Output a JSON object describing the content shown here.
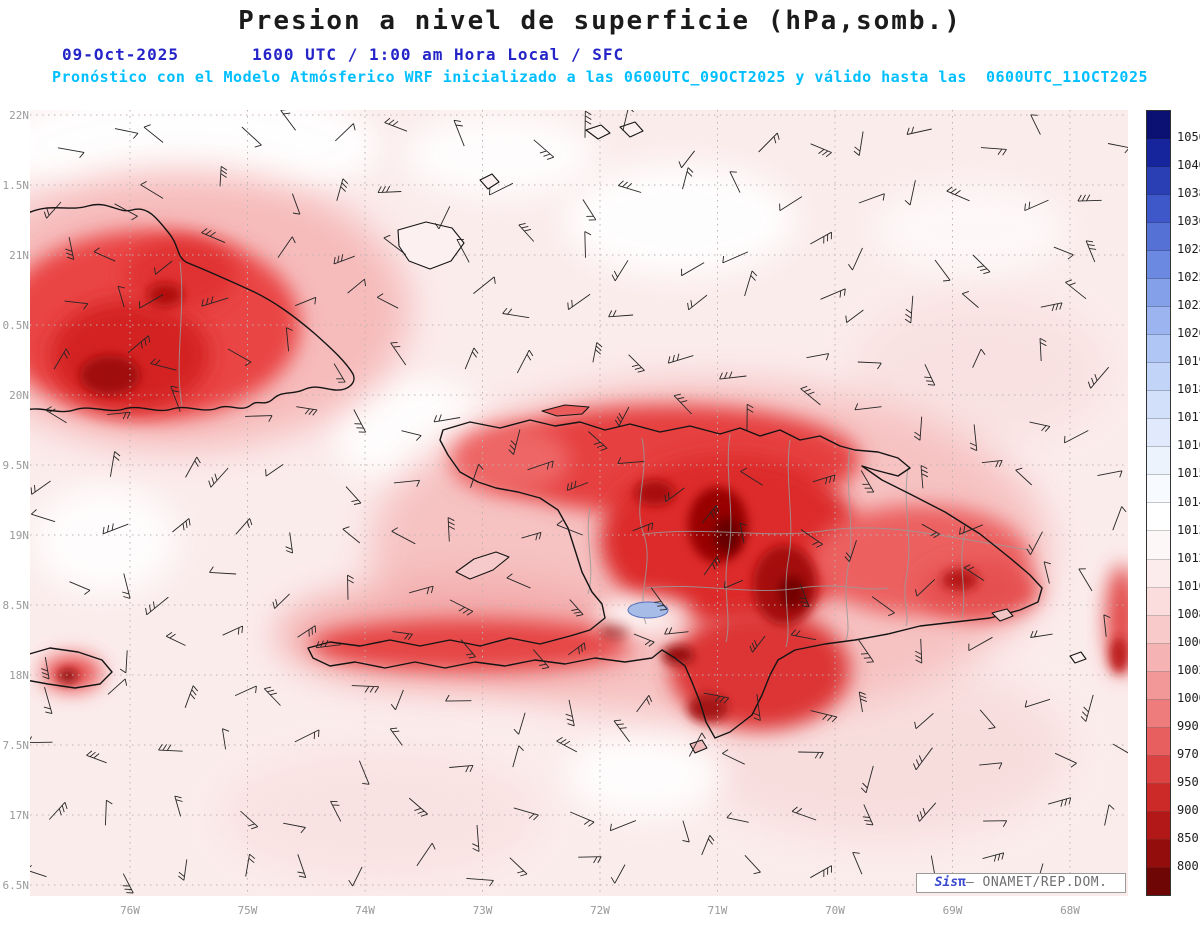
{
  "header": {
    "title": "Presion a nivel de superficie (hPa,somb.)",
    "date": "09-Oct-2025",
    "time_line": "1600 UTC / 1:00 am Hora Local / SFC",
    "model_line": "Pronóstico con el Modelo Atmósferico WRF inicializado a las 0600UTC_09OCT2025 y válido hasta las  0600UTC_11OCT2025"
  },
  "map": {
    "lat_labels": [
      "22N",
      "1.5N",
      "21N",
      "0.5N",
      "20N",
      "9.5N",
      "19N",
      "8.5N",
      "18N",
      "7.5N",
      "17N",
      "6.5N"
    ],
    "lon_labels": [
      "76W",
      "75W",
      "74W",
      "73W",
      "72W",
      "71W",
      "70W",
      "69W",
      "68W"
    ]
  },
  "colorbar": {
    "labels": [
      "1050",
      "1040",
      "1038",
      "1030",
      "1028",
      "1025",
      "1022",
      "1020",
      "1019",
      "1018",
      "1017",
      "1016",
      "1015",
      "1014",
      "1013",
      "1012",
      "1010",
      "1008",
      "1006",
      "1002",
      "1000",
      "990",
      "970",
      "950",
      "900",
      "850",
      "800"
    ],
    "colors": [
      "#0a1172",
      "#16259b",
      "#2b3fb5",
      "#3f58c9",
      "#5571d6",
      "#6b89e0",
      "#84a0e8",
      "#9cb4ef",
      "#b0c6f4",
      "#c2d4f7",
      "#d3e0fa",
      "#e1eafc",
      "#edf3fd",
      "#f7fafe",
      "#ffffff",
      "#fef7f7",
      "#fdecec",
      "#fbdddd",
      "#f9caca",
      "#f6b3b3",
      "#f29898",
      "#ee7c7c",
      "#e75f5f",
      "#dd4242",
      "#cc2929",
      "#b31818",
      "#930d0d",
      "#6e0606"
    ]
  },
  "watermark": {
    "brand": "Sis",
    "pi": "π",
    "org": "– ONAMET/REP.DOM."
  },
  "colors": {
    "header_blue": "#2424c8",
    "model_cyan": "#00bfff",
    "axis_gray": "#9a9a9a",
    "ocean_base": "#fbecec"
  }
}
